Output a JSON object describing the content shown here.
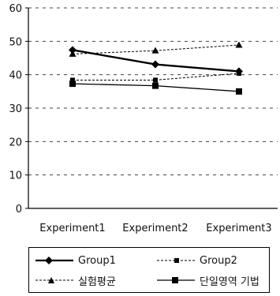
{
  "chart_data": {
    "type": "line",
    "categories": [
      "Experiment1",
      "Experiment2",
      "Experiment3"
    ],
    "ylim": [
      0,
      60
    ],
    "yticks": [
      0,
      10,
      20,
      30,
      40,
      50,
      60
    ],
    "grid": "horizontal dashed",
    "legend_position": "bottom",
    "series": [
      {
        "name": "Group1",
        "values": [
          47.4,
          43.1,
          41.0
        ],
        "marker": "diamond",
        "line": "solid-thick",
        "color": "#000000"
      },
      {
        "name": "Group2",
        "values": [
          38.4,
          38.4,
          40.4
        ],
        "marker": "small-square",
        "line": "thin-dash",
        "color": "#000000"
      },
      {
        "name": "실험평균",
        "values": [
          46.2,
          47.2,
          48.9
        ],
        "marker": "triangle",
        "line": "thin-dash",
        "color": "#000000"
      },
      {
        "name": "단일영역 기법",
        "values": [
          37.3,
          36.7,
          35.0
        ],
        "marker": "square",
        "line": "solid",
        "color": "#000000"
      }
    ]
  }
}
